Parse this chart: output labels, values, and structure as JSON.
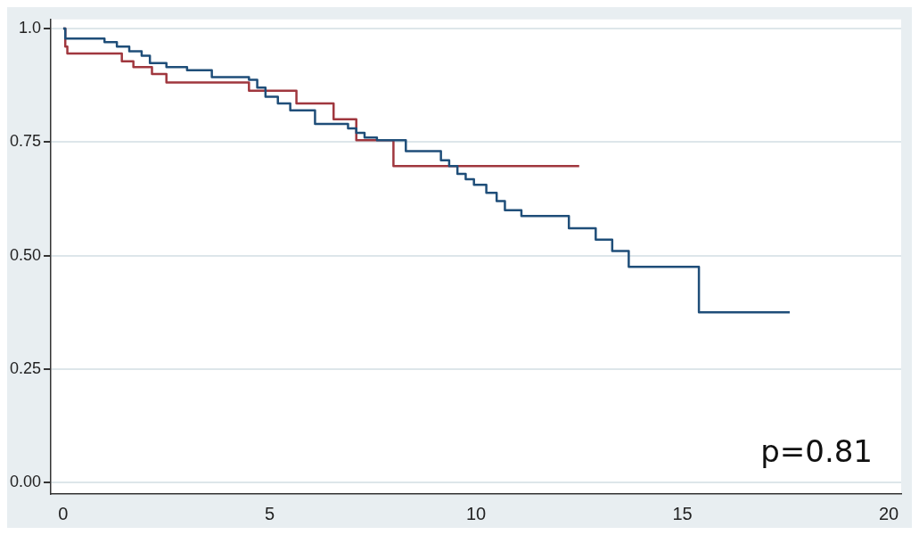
{
  "chart_data": {
    "type": "step",
    "xlim": [
      -0.3,
      20.3
    ],
    "ylim": [
      -0.025,
      1.02
    ],
    "xticks": [
      0,
      5,
      10,
      15,
      20
    ],
    "yticks": [
      {
        "value": 0,
        "label": "0.00"
      },
      {
        "value": 0.25,
        "label": "0.25"
      },
      {
        "value": 0.5,
        "label": "0.50"
      },
      {
        "value": 0.75,
        "label": "0.75"
      },
      {
        "value": 1,
        "label": "1.0"
      }
    ],
    "grid": "y",
    "legend": false,
    "annotations": [
      "p=0.81"
    ],
    "series": [
      {
        "color": "#1f4e79",
        "x": [
          0,
          0.05,
          1.0,
          1.3,
          1.6,
          1.9,
          2.1,
          2.5,
          3.0,
          3.6,
          4.5,
          4.7,
          4.9,
          5.2,
          5.5,
          6.1,
          6.9,
          7.1,
          7.3,
          7.6,
          8.3,
          9.15,
          9.35,
          9.55,
          9.75,
          9.95,
          10.25,
          10.5,
          10.7,
          11.1,
          12.25,
          12.9,
          13.3,
          13.7,
          15.4,
          17.6
        ],
        "values": [
          1,
          0.978,
          0.97,
          0.96,
          0.95,
          0.94,
          0.924,
          0.915,
          0.908,
          0.893,
          0.887,
          0.87,
          0.85,
          0.835,
          0.82,
          0.79,
          0.78,
          0.77,
          0.76,
          0.754,
          0.73,
          0.71,
          0.697,
          0.68,
          0.668,
          0.656,
          0.638,
          0.62,
          0.6,
          0.587,
          0.56,
          0.535,
          0.51,
          0.475,
          0.375,
          0.375
        ]
      },
      {
        "color": "#a0373e",
        "x": [
          0,
          0.05,
          0.1,
          1.42,
          1.7,
          2.15,
          2.5,
          4.5,
          5.65,
          6.55,
          7.1,
          8.0,
          12.5
        ],
        "values": [
          1,
          0.96,
          0.945,
          0.928,
          0.915,
          0.9,
          0.881,
          0.863,
          0.835,
          0.8,
          0.754,
          0.697,
          0.697
        ]
      }
    ]
  }
}
